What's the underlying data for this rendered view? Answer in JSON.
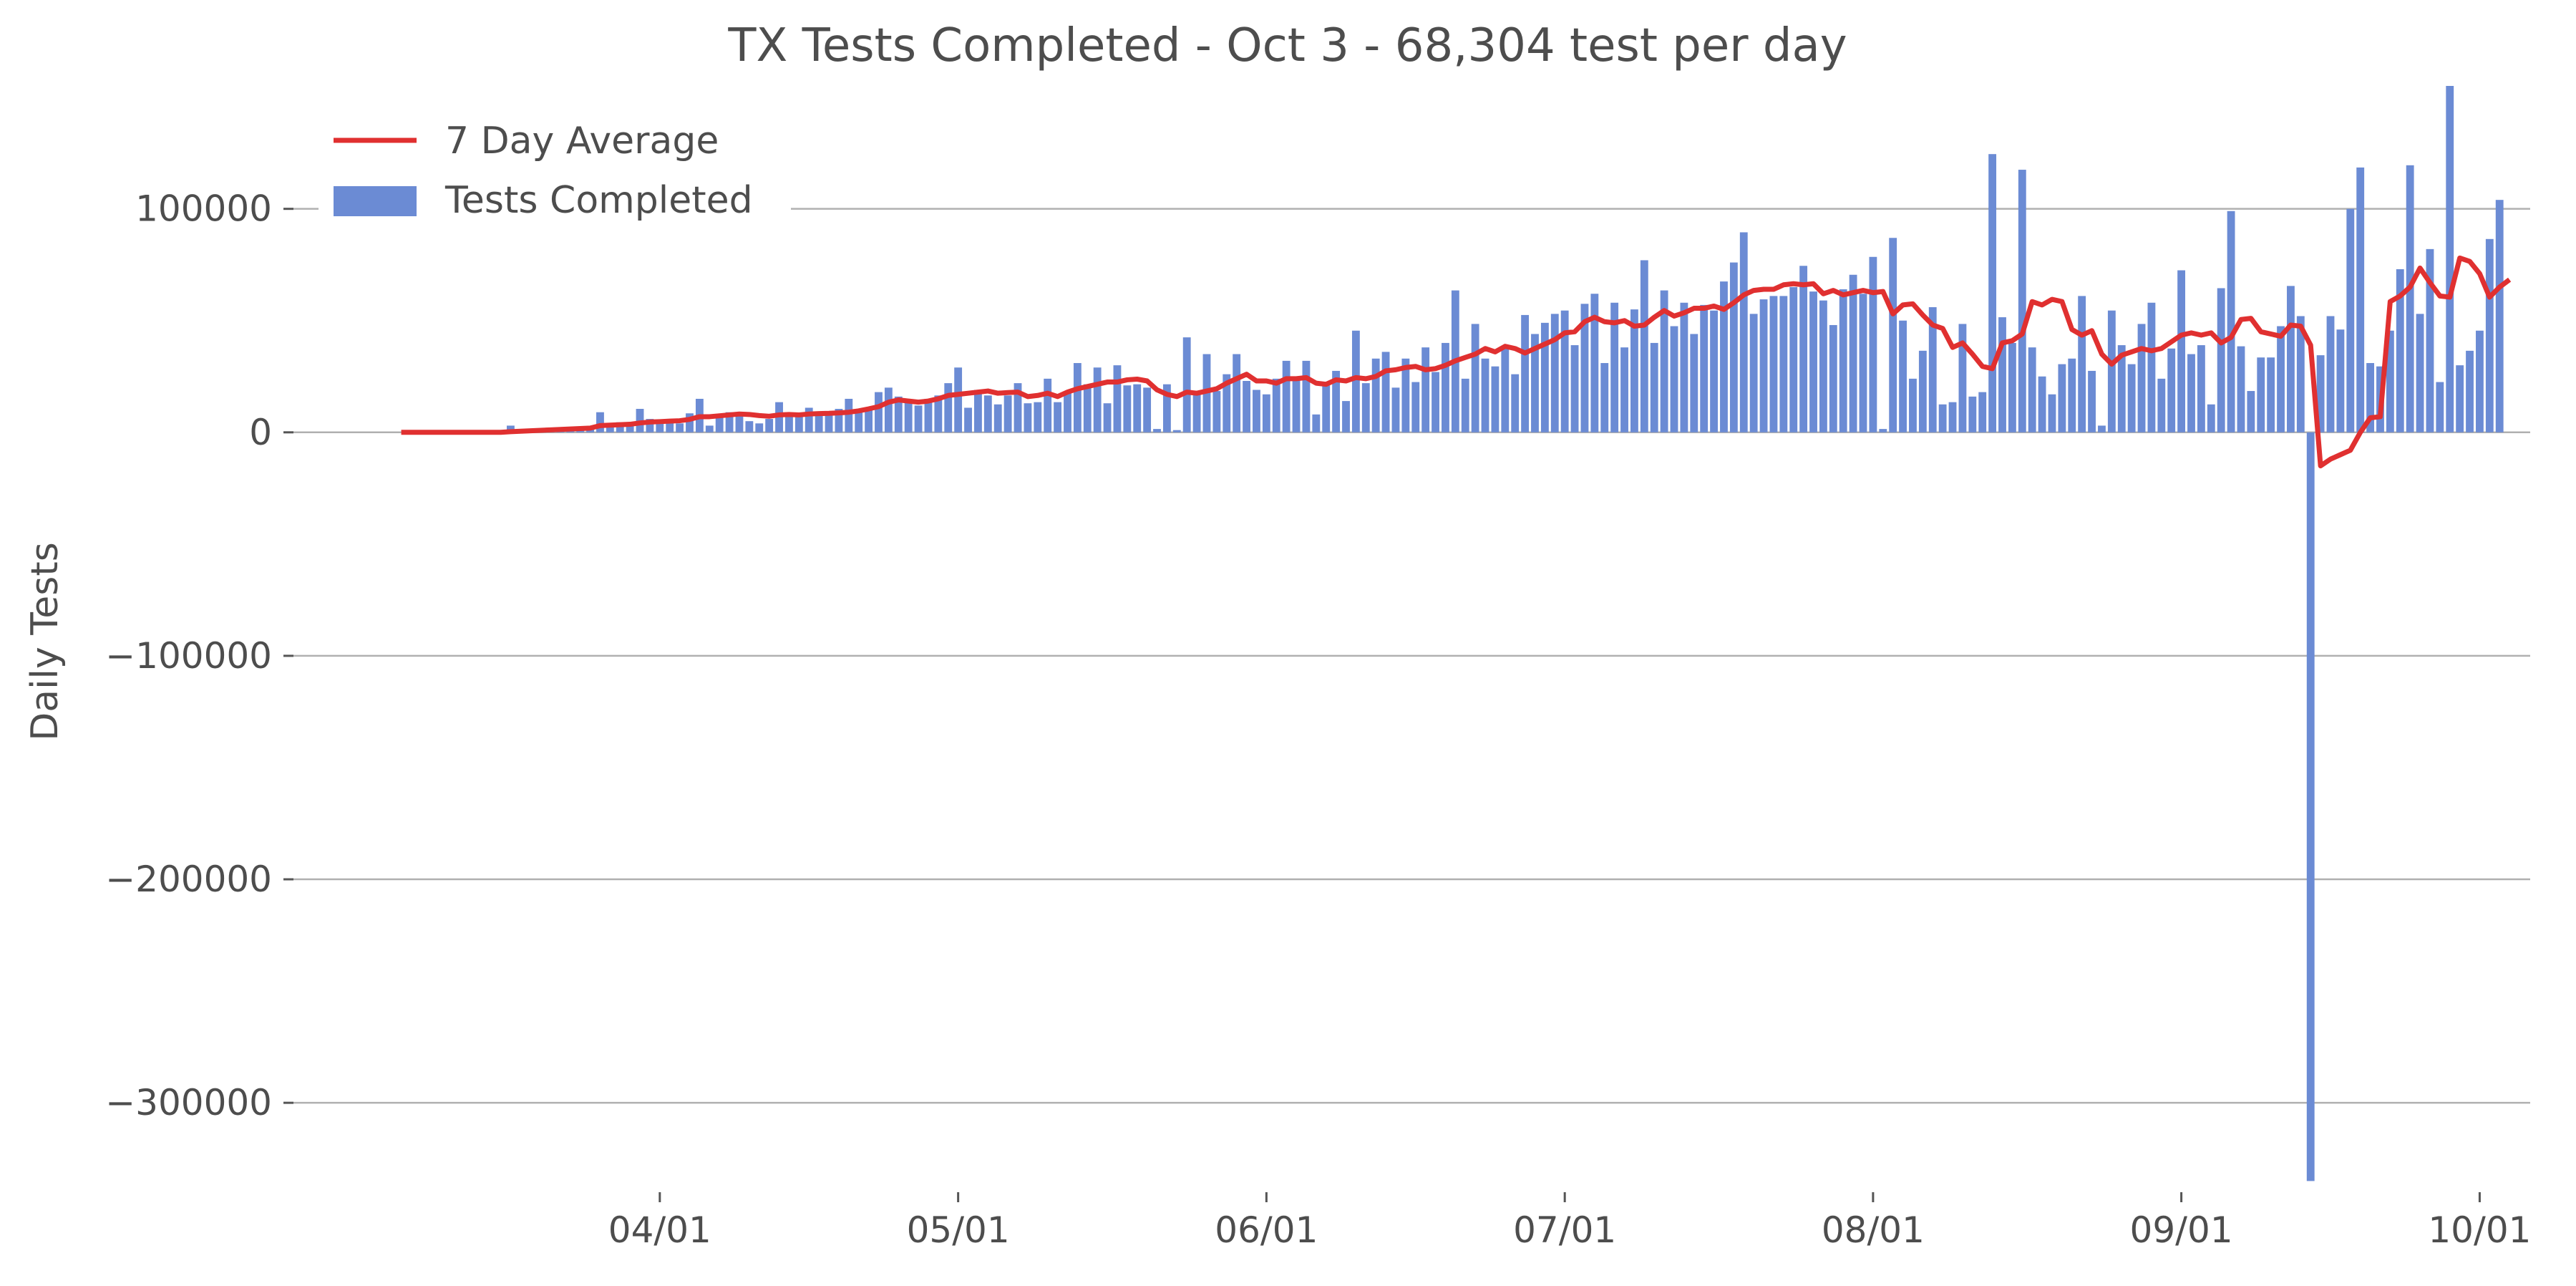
{
  "chart_data": {
    "type": "bar",
    "title": "TX Tests Completed - Oct 3 - 68,304 test per day",
    "xlabel": "",
    "ylabel": "Daily Tests",
    "ylim": [
      -340000,
      155000
    ],
    "yticks": [
      100000,
      0,
      -100000,
      -200000,
      -300000
    ],
    "ytick_labels": [
      "100000",
      "0",
      "−100000",
      "−200000",
      "−300000"
    ],
    "xticks": [
      {
        "label": "04/01",
        "date": "2020-04-01"
      },
      {
        "label": "05/01",
        "date": "2020-05-01"
      },
      {
        "label": "06/01",
        "date": "2020-06-01"
      },
      {
        "label": "07/01",
        "date": "2020-07-01"
      },
      {
        "label": "08/01",
        "date": "2020-08-01"
      },
      {
        "label": "09/01",
        "date": "2020-09-01"
      },
      {
        "label": "10/01",
        "date": "2020-10-01"
      }
    ],
    "grid": "horizontal",
    "legend_position": "top-left",
    "colors": {
      "bars": "#6b8bd4",
      "line": "#e03030"
    },
    "series": [
      {
        "name": "Tests Completed",
        "kind": "bar",
        "start_date": "2020-03-06",
        "values": [
          0,
          0,
          0,
          0,
          0,
          0,
          0,
          0,
          0,
          0,
          0,
          3000,
          1000,
          1000,
          1000,
          1000,
          2000,
          1500,
          2500,
          1500,
          9000,
          3500,
          4500,
          3000,
          10500,
          6000,
          4500,
          5500,
          4000,
          8500,
          15000,
          3000,
          7000,
          9000,
          8000,
          5000,
          4000,
          6000,
          13500,
          7000,
          8500,
          11000,
          8000,
          9000,
          10500,
          15000,
          9500,
          10500,
          18000,
          20000,
          16000,
          14000,
          12000,
          15000,
          16500,
          22000,
          29000,
          11000,
          19000,
          16500,
          12500,
          16500,
          22000,
          13000,
          13500,
          24000,
          13500,
          18000,
          31000,
          21500,
          29000,
          13000,
          30000,
          21000,
          21500,
          20000,
          1500,
          21500,
          1000,
          42500,
          17500,
          35000,
          18500,
          26000,
          35000,
          23000,
          19000,
          17000,
          24000,
          32000,
          25000,
          32000,
          8000,
          21000,
          27500,
          14000,
          45500,
          22000,
          33000,
          36000,
          20000,
          33000,
          22500,
          38000,
          27000,
          40000,
          63500,
          24000,
          48500,
          33000,
          29500,
          38000,
          26000,
          52500,
          44000,
          49000,
          53000,
          54500,
          39000,
          57500,
          62000,
          31000,
          58000,
          38000,
          55000,
          77000,
          40000,
          63500,
          47500,
          58000,
          44000,
          57000,
          54500,
          67500,
          76000,
          89500,
          53000,
          59500,
          61000,
          61000,
          65000,
          74500,
          63000,
          59000,
          48000,
          64000,
          70500,
          62000,
          78500,
          1500,
          87000,
          50000,
          24000,
          36500,
          56000,
          12500,
          13500,
          48500,
          16000,
          18000,
          124500,
          51500,
          40000,
          117500,
          38000,
          25000,
          17000,
          30500,
          33000,
          61000,
          27500,
          3000,
          54500,
          39000,
          30500,
          48500,
          58000,
          24000,
          37500,
          72500,
          35000,
          39000,
          12500,
          64500,
          99000,
          38500,
          18500,
          33500,
          33500,
          47500,
          65500,
          52000,
          -335000,
          34500,
          52000,
          46000,
          100000,
          118500,
          31000,
          29500,
          45500,
          73000,
          119500,
          53000,
          82000,
          22500,
          155000,
          30000,
          36500,
          45500,
          86500,
          104000
        ]
      },
      {
        "name": "7 Day Average",
        "kind": "line",
        "start_date": "2020-03-06",
        "values": [
          0,
          0,
          0,
          0,
          0,
          0,
          0,
          0,
          0,
          0,
          0,
          300,
          500,
          700,
          900,
          1100,
          1300,
          1500,
          1700,
          1900,
          3000,
          3200,
          3400,
          3600,
          4200,
          4600,
          4800,
          5000,
          5200,
          5800,
          7000,
          7000,
          7400,
          7800,
          8200,
          8000,
          7500,
          7200,
          7800,
          8000,
          7800,
          8200,
          8400,
          8500,
          8700,
          9000,
          9600,
          10500,
          11500,
          13500,
          14500,
          14000,
          13500,
          14000,
          15000,
          16500,
          17000,
          17500,
          18000,
          18500,
          17500,
          17800,
          18000,
          16000,
          16500,
          17500,
          16000,
          18000,
          19500,
          20500,
          21500,
          22500,
          22500,
          23500,
          23800,
          23000,
          19000,
          17000,
          16000,
          18000,
          17500,
          18500,
          19500,
          22000,
          24000,
          26000,
          23000,
          23000,
          22000,
          24000,
          24000,
          24500,
          22000,
          21500,
          23500,
          23000,
          24500,
          24000,
          25000,
          27500,
          28000,
          29000,
          29500,
          28000,
          28500,
          30000,
          32000,
          33500,
          35000,
          37500,
          36000,
          38500,
          37500,
          35500,
          37500,
          39500,
          41500,
          44500,
          45000,
          49500,
          51500,
          49500,
          49000,
          50000,
          47500,
          48000,
          51500,
          54500,
          52000,
          53500,
          55500,
          55500,
          56500,
          55000,
          58000,
          61500,
          63500,
          64000,
          64000,
          66000,
          66500,
          66000,
          66500,
          62000,
          63500,
          61500,
          62500,
          63500,
          62500,
          63000,
          53000,
          57000,
          57500,
          52500,
          48000,
          46500,
          38000,
          40000,
          35000,
          29500,
          28500,
          40000,
          41000,
          44000,
          58500,
          57000,
          59500,
          58500,
          46000,
          43500,
          45500,
          35000,
          30500,
          34500,
          36000,
          37500,
          36500,
          37500,
          40500,
          43500,
          44500,
          43500,
          44500,
          40000,
          42500,
          50500,
          51000,
          45000,
          44000,
          43000,
          48000,
          47500,
          39000,
          -15000,
          -12000,
          -10000,
          -8000,
          0,
          6500,
          7000,
          58500,
          61000,
          65000,
          73500,
          67000,
          61000,
          60500,
          78000,
          76500,
          71000,
          60500,
          65000,
          68300
        ]
      }
    ]
  }
}
